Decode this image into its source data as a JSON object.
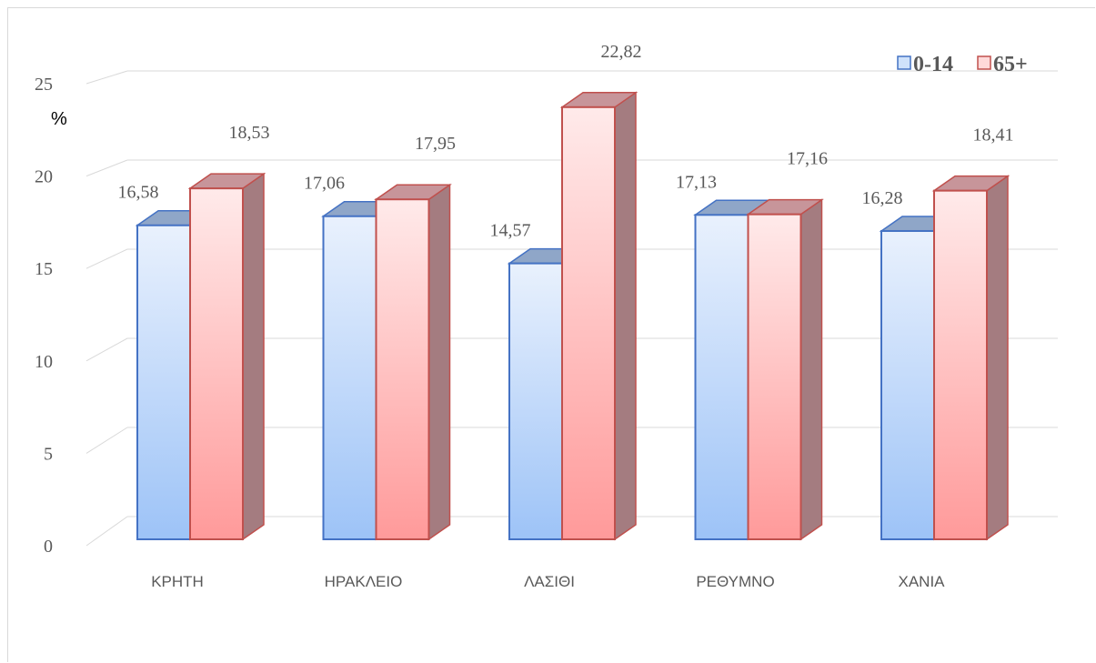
{
  "chart_data": {
    "type": "bar",
    "ylabel": "%",
    "ylim": [
      0,
      25
    ],
    "yticks": [
      "0",
      "5",
      "10",
      "15",
      "20",
      "25"
    ],
    "categories": [
      "ΚΡΗΤΗ",
      "ΗΡΑΚΛΕΙΟ",
      "ΛΑΣΙΘΙ",
      "ΡΕΘΥΜΝΟ",
      "ΧΑΝΙΑ"
    ],
    "series": [
      {
        "name": "0-14",
        "values": [
          16.58,
          17.06,
          14.57,
          17.13,
          16.28
        ],
        "labels": [
          "16,58",
          "17,06",
          "14,57",
          "17,13",
          "16,28"
        ],
        "color": "#9dc3f7"
      },
      {
        "name": "65+",
        "values": [
          18.53,
          17.95,
          22.82,
          17.16,
          18.41
        ],
        "labels": [
          "18,53",
          "17,95",
          "22,82",
          "17,16",
          "18,41"
        ],
        "color": "#ff9a9a"
      }
    ],
    "legend_position": "top-right",
    "style": "3d-clustered-column",
    "grid": true
  }
}
